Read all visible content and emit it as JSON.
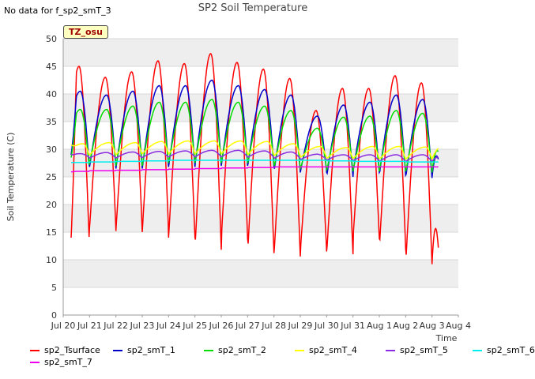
{
  "header": {
    "nodata": "No data for f_sp2_smT_3",
    "title": "SP2 Soil Temperature",
    "badge": "TZ_osu"
  },
  "chart_data": {
    "type": "line",
    "title": "SP2 Soil Temperature",
    "xlabel": "Time",
    "ylabel": "Soil Temperature (C)",
    "ylim": [
      0,
      50
    ],
    "yticks": [
      0,
      5,
      10,
      15,
      20,
      25,
      30,
      35,
      40,
      45,
      50
    ],
    "xlim": [
      0,
      15
    ],
    "xtick_labels": [
      "Jul 20",
      "Jul 21",
      "Jul 22",
      "Jul 23",
      "Jul 24",
      "Jul 25",
      "Jul 26",
      "Jul 27",
      "Jul 28",
      "Jul 29",
      "Jul 30",
      "Jul 31",
      "Aug 1",
      "Aug 2",
      "Aug 3",
      "Aug 4"
    ],
    "grid": true,
    "legend_position": "bottom",
    "series": [
      {
        "name": "sp2_Tsurface",
        "color": "#ff0000",
        "daily_min": [
          11.5,
          15.8,
          15.2,
          15.0,
          14.0,
          11.8,
          13.8,
          11.2,
          10.6,
          11.5,
          11.0,
          13.8,
          12.0,
          9.2
        ],
        "daily_max": [
          45.0,
          43.0,
          44.0,
          46.0,
          45.5,
          47.3,
          45.7,
          44.5,
          42.8,
          37.0,
          41.0,
          41.0,
          43.3,
          42.0
        ],
        "start": 14.0,
        "end": 11.5
      },
      {
        "name": "sp2_smT_1",
        "color": "#0000cc",
        "daily_min": [
          26.0,
          26.8,
          26.5,
          26.5,
          26.8,
          27.0,
          27.0,
          26.8,
          25.8,
          25.8,
          25.0,
          25.8,
          25.3,
          24.8
        ],
        "daily_max": [
          40.5,
          39.8,
          40.5,
          41.5,
          41.5,
          42.5,
          41.5,
          40.8,
          39.8,
          36.0,
          38.0,
          38.5,
          39.8,
          39.0
        ],
        "start": 29.0,
        "end": 28.0
      },
      {
        "name": "sp2_smT_2",
        "color": "#00dd00",
        "daily_min": [
          26.2,
          27.5,
          27.0,
          27.0,
          27.5,
          27.5,
          27.5,
          27.3,
          26.5,
          26.3,
          26.0,
          26.0,
          26.0,
          25.8
        ],
        "daily_max": [
          37.2,
          37.2,
          37.8,
          38.5,
          38.5,
          39.0,
          38.5,
          37.8,
          37.0,
          33.8,
          35.8,
          36.0,
          37.0,
          36.5
        ],
        "start": 28.5,
        "end": 29.5
      },
      {
        "name": "sp2_smT_4",
        "color": "#ffff00",
        "daily_min": [
          28.8,
          29.0,
          29.0,
          29.2,
          29.2,
          29.2,
          29.2,
          29.0,
          28.8,
          28.5,
          28.3,
          28.3,
          28.2,
          28.2
        ],
        "daily_max": [
          31.0,
          31.2,
          31.2,
          31.4,
          31.5,
          31.5,
          31.5,
          31.4,
          31.0,
          30.5,
          30.3,
          30.5,
          30.5,
          30.4
        ],
        "start": 30.8,
        "end": 30.2
      },
      {
        "name": "sp2_smT_5",
        "color": "#8a2be2",
        "daily_min": [
          28.5,
          28.4,
          28.4,
          28.5,
          28.6,
          28.6,
          28.6,
          28.5,
          28.3,
          28.1,
          28.0,
          27.9,
          27.8,
          27.8
        ],
        "daily_max": [
          29.2,
          29.4,
          29.5,
          29.6,
          29.7,
          29.8,
          29.8,
          29.7,
          29.5,
          29.1,
          29.0,
          29.0,
          29.0,
          29.0
        ],
        "start": 29.0,
        "end": 28.6
      },
      {
        "name": "sp2_smT_6",
        "color": "#00eeee",
        "daily_min": [
          27.6,
          27.7,
          27.8,
          27.9,
          28.0,
          28.0,
          28.0,
          28.0,
          28.0,
          28.0,
          27.9,
          27.8,
          27.8,
          27.7
        ],
        "daily_max": [
          27.6,
          27.7,
          27.8,
          27.9,
          28.0,
          28.0,
          28.0,
          28.0,
          28.0,
          28.0,
          27.9,
          27.8,
          27.8,
          27.7
        ],
        "start": 27.6,
        "end": 27.7
      },
      {
        "name": "sp2_smT_7",
        "color": "#ee00ee",
        "daily_min": [
          26.0,
          26.1,
          26.2,
          26.3,
          26.4,
          26.5,
          26.6,
          26.7,
          26.8,
          26.8,
          26.8,
          26.8,
          26.8,
          26.8
        ],
        "daily_max": [
          26.0,
          26.1,
          26.2,
          26.3,
          26.4,
          26.5,
          26.6,
          26.7,
          26.8,
          26.8,
          26.8,
          26.8,
          26.8,
          26.8
        ],
        "start": 25.9,
        "end": 26.8
      }
    ]
  }
}
